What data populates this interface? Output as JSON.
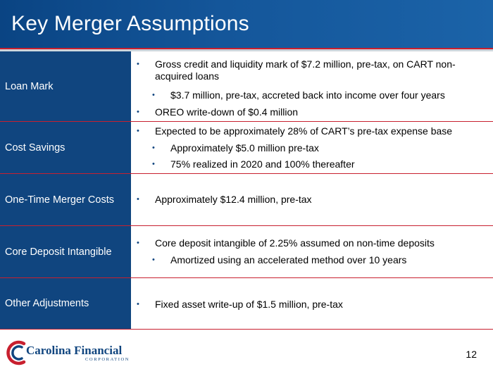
{
  "slide": {
    "title": "Key Merger Assumptions",
    "page_number": "12"
  },
  "rows": [
    {
      "label": "Loan Mark",
      "bullets": [
        {
          "text": "Gross credit and liquidity mark of $7.2 million, pre-tax, on CART non-acquired loans",
          "level": 1
        },
        {
          "text": "$3.7 million, pre-tax, accreted back into income over four years",
          "level": 2
        },
        {
          "text": "OREO write-down of $0.4 million",
          "level": 1
        }
      ]
    },
    {
      "label": "Cost Savings",
      "bullets": [
        {
          "text": "Expected to be approximately 28% of CART’s pre-tax expense base",
          "level": 1
        },
        {
          "text": "Approximately $5.0 million pre-tax",
          "level": 2
        },
        {
          "text": "75% realized in 2020 and 100% thereafter",
          "level": 2
        }
      ]
    },
    {
      "label": "One-Time Merger Costs",
      "bullets": [
        {
          "text": "Approximately $12.4 million, pre-tax",
          "level": 1
        }
      ]
    },
    {
      "label": "Core Deposit Intangible",
      "bullets": [
        {
          "text": "Core deposit intangible of 2.25% assumed on non-time deposits",
          "level": 1
        },
        {
          "text": "Amortized using an accelerated method over 10 years",
          "level": 2
        }
      ]
    },
    {
      "label": "Other Adjustments",
      "bullets": [
        {
          "text": "Fixed asset write-up of $1.5 million, pre-tax",
          "level": 1
        }
      ]
    }
  ],
  "logo": {
    "name": "Carolina Financial",
    "sub": "CORPORATION"
  },
  "colors": {
    "brand_blue": "#10457f",
    "accent_red": "#c8202f"
  },
  "bullet_glyph": "•"
}
